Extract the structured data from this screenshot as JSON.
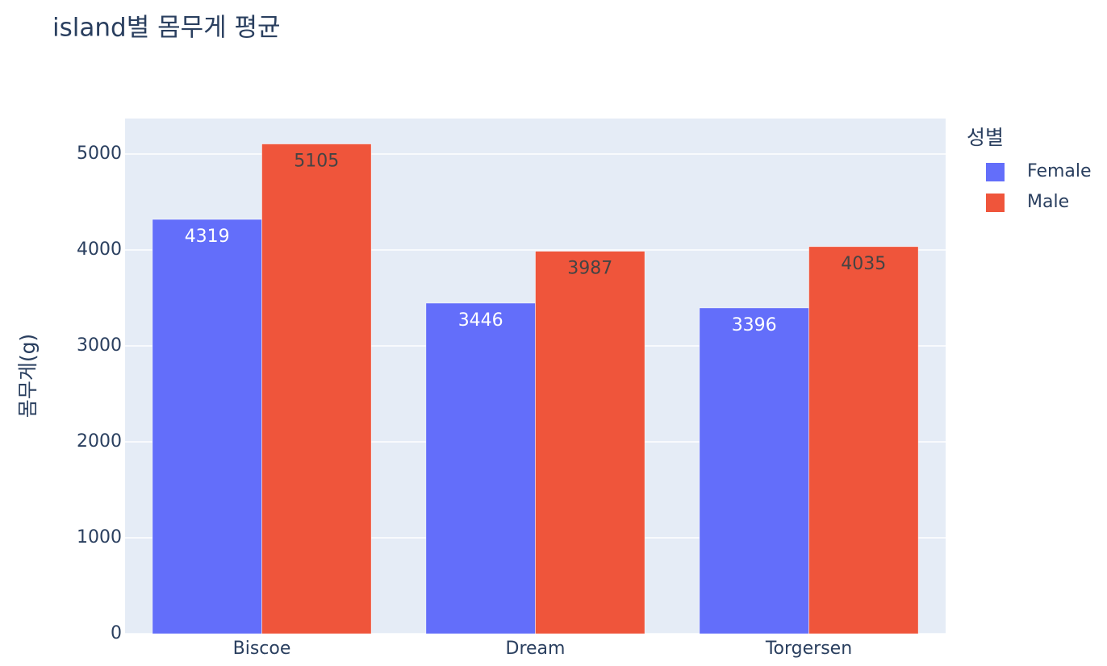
{
  "chart_data": {
    "type": "bar",
    "title": "island별 몸무게 평균",
    "y_label": "몸무게(g)",
    "legend_title": "성별",
    "categories": [
      "Biscoe",
      "Dream",
      "Torgersen"
    ],
    "series": [
      {
        "name": "Female",
        "color": "#636efa",
        "values": [
          4319,
          3446,
          3396
        ]
      },
      {
        "name": "Male",
        "color": "#ef553b",
        "values": [
          5105,
          3987,
          4035
        ]
      }
    ],
    "ylim": [
      0,
      5370
    ],
    "yticks": [
      0,
      1000,
      2000,
      3000,
      4000,
      5000
    ],
    "grid": true,
    "legend": "right"
  }
}
